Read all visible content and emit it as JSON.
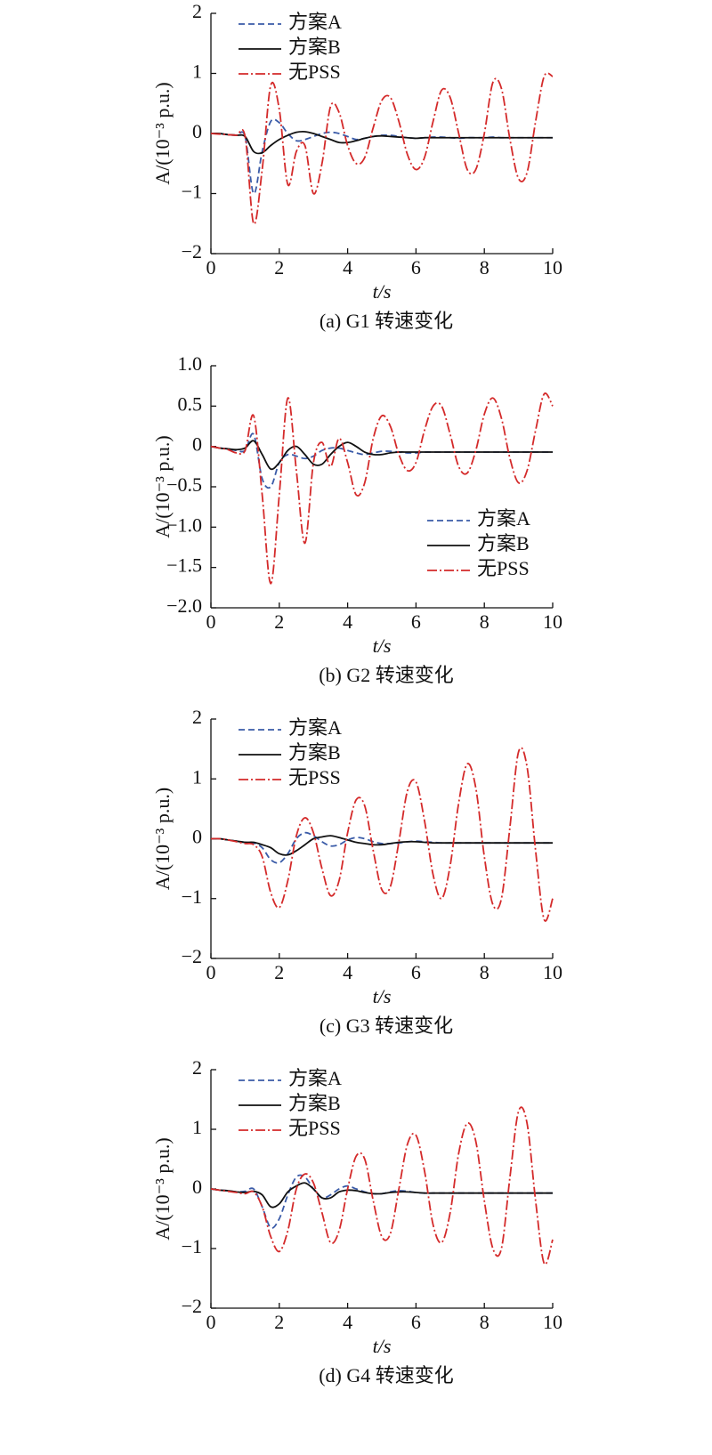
{
  "chart_data": [
    {
      "type": "line",
      "y_label": "A/(10⁻³ p.u.)",
      "x_label": "t/s",
      "caption": "(a) G1 转速变化",
      "legend": "upper left",
      "x": [
        0,
        0.25,
        0.5,
        0.75,
        1,
        1.25,
        1.5,
        1.75,
        2,
        2.25,
        2.5,
        2.75,
        3,
        3.25,
        3.5,
        3.75,
        4,
        4.25,
        4.5,
        4.75,
        5,
        5.25,
        5.5,
        5.75,
        6,
        6.25,
        6.5,
        6.75,
        7,
        7.25,
        7.5,
        7.75,
        8,
        8.25,
        8.5,
        8.75,
        9,
        9.25,
        9.5,
        9.75,
        10
      ],
      "xlim": [
        0,
        10
      ],
      "xticks": [
        0,
        2,
        4,
        6,
        8,
        10
      ],
      "ylim": [
        -2,
        2
      ],
      "yticks": [
        2,
        1,
        0,
        {
          "value": -1,
          "label": "−1"
        },
        {
          "value": -2,
          "label": "−2"
        }
      ],
      "series": [
        {
          "name": "方案A",
          "color": "#3a5ba8",
          "dash": "dashed",
          "values": [
            0,
            0,
            -0.02,
            -0.03,
            -0.05,
            -1.0,
            -0.3,
            0.2,
            0.18,
            0,
            -0.12,
            -0.1,
            -0.05,
            0,
            0.02,
            0,
            -0.05,
            -0.1,
            -0.08,
            -0.05,
            -0.03,
            -0.03,
            -0.05,
            -0.07,
            -0.08,
            -0.07,
            -0.06,
            -0.06,
            -0.07,
            -0.08,
            -0.07,
            -0.07,
            -0.07,
            -0.06,
            -0.07,
            -0.07,
            -0.07,
            -0.07,
            -0.07,
            -0.07,
            -0.07
          ]
        },
        {
          "name": "方案B",
          "color": "#111111",
          "dash": "solid",
          "values": [
            0,
            0,
            -0.02,
            -0.03,
            -0.05,
            -0.3,
            -0.32,
            -0.2,
            -0.1,
            -0.03,
            0.02,
            0.03,
            0,
            -0.05,
            -0.1,
            -0.15,
            -0.15,
            -0.12,
            -0.08,
            -0.05,
            -0.04,
            -0.05,
            -0.06,
            -0.07,
            -0.08,
            -0.07,
            -0.07,
            -0.07,
            -0.07,
            -0.07,
            -0.07,
            -0.07,
            -0.07,
            -0.07,
            -0.07,
            -0.07,
            -0.07,
            -0.07,
            -0.07,
            -0.07,
            -0.07
          ]
        },
        {
          "name": "无PSS",
          "color": "#d42a2a",
          "dash": "dashdot",
          "values": [
            0,
            -0.01,
            -0.02,
            -0.03,
            -0.05,
            -1.5,
            -0.6,
            0.8,
            0.4,
            -0.85,
            -0.3,
            -0.2,
            -1.0,
            -0.5,
            0.45,
            0.35,
            -0.2,
            -0.5,
            -0.4,
            0.1,
            0.55,
            0.6,
            0.2,
            -0.35,
            -0.6,
            -0.4,
            0.2,
            0.72,
            0.6,
            0,
            -0.6,
            -0.6,
            0,
            0.85,
            0.75,
            -0.1,
            -0.75,
            -0.65,
            0.2,
            0.95,
            0.95
          ]
        }
      ]
    },
    {
      "type": "line",
      "y_label": "A/(10⁻³ p.u.)",
      "x_label": "t/s",
      "caption": "(b) G2 转速变化",
      "legend": "lower right",
      "x": [
        0,
        0.25,
        0.5,
        0.75,
        1,
        1.25,
        1.5,
        1.75,
        2,
        2.25,
        2.5,
        2.75,
        3,
        3.25,
        3.5,
        3.75,
        4,
        4.25,
        4.5,
        4.75,
        5,
        5.25,
        5.5,
        5.75,
        6,
        6.25,
        6.5,
        6.75,
        7,
        7.25,
        7.5,
        7.75,
        8,
        8.25,
        8.5,
        8.75,
        9,
        9.25,
        9.5,
        9.75,
        10
      ],
      "xlim": [
        0,
        10
      ],
      "xticks": [
        0,
        2,
        4,
        6,
        8,
        10
      ],
      "ylim": [
        -2,
        1
      ],
      "yticks": [
        {
          "value": 1,
          "label": "1.0"
        },
        0.5,
        0,
        {
          "value": -0.5,
          "label": "−0.5"
        },
        {
          "value": -1,
          "label": "−1.0"
        },
        {
          "value": -1.5,
          "label": "−1.5"
        },
        {
          "value": -2,
          "label": "−2.0"
        }
      ],
      "series": [
        {
          "name": "方案A",
          "color": "#3a5ba8",
          "dash": "dashed",
          "values": [
            0,
            -0.02,
            -0.03,
            -0.05,
            -0.05,
            0.15,
            -0.4,
            -0.5,
            -0.2,
            -0.1,
            -0.12,
            -0.15,
            -0.12,
            -0.05,
            -0.02,
            -0.02,
            -0.05,
            -0.08,
            -0.1,
            -0.08,
            -0.06,
            -0.06,
            -0.07,
            -0.08,
            -0.08,
            -0.07,
            -0.07,
            -0.07,
            -0.07,
            -0.07,
            -0.07,
            -0.07,
            -0.07,
            -0.07,
            -0.07,
            -0.07,
            -0.07,
            -0.07,
            -0.07,
            -0.07,
            -0.07
          ]
        },
        {
          "name": "方案B",
          "color": "#111111",
          "dash": "solid",
          "values": [
            0,
            -0.02,
            -0.03,
            -0.04,
            -0.02,
            0.07,
            -0.1,
            -0.28,
            -0.2,
            -0.05,
            0,
            -0.1,
            -0.22,
            -0.22,
            -0.1,
            0,
            0.05,
            0,
            -0.07,
            -0.1,
            -0.1,
            -0.08,
            -0.07,
            -0.07,
            -0.07,
            -0.07,
            -0.07,
            -0.07,
            -0.07,
            -0.07,
            -0.07,
            -0.07,
            -0.07,
            -0.07,
            -0.07,
            -0.07,
            -0.07,
            -0.07,
            -0.07,
            -0.07,
            -0.07
          ]
        },
        {
          "name": "无PSS",
          "color": "#d42a2a",
          "dash": "dashdot",
          "values": [
            0,
            -0.02,
            -0.04,
            -0.08,
            -0.05,
            0.38,
            -0.6,
            -1.7,
            -0.6,
            0.6,
            -0.3,
            -1.2,
            -0.2,
            0.05,
            -0.25,
            0.1,
            -0.2,
            -0.6,
            -0.45,
            0.1,
            0.38,
            0.25,
            -0.1,
            -0.3,
            -0.2,
            0.2,
            0.5,
            0.5,
            0.15,
            -0.25,
            -0.33,
            -0.05,
            0.4,
            0.6,
            0.35,
            -0.15,
            -0.45,
            -0.3,
            0.2,
            0.65,
            0.5
          ]
        }
      ]
    },
    {
      "type": "line",
      "y_label": "A/(10⁻³ p.u.)",
      "x_label": "t/s",
      "caption": "(c) G3 转速变化",
      "legend": "upper left",
      "x": [
        0,
        0.25,
        0.5,
        0.75,
        1,
        1.25,
        1.5,
        1.75,
        2,
        2.25,
        2.5,
        2.75,
        3,
        3.25,
        3.5,
        3.75,
        4,
        4.25,
        4.5,
        4.75,
        5,
        5.25,
        5.5,
        5.75,
        6,
        6.25,
        6.5,
        6.75,
        7,
        7.25,
        7.5,
        7.75,
        8,
        8.25,
        8.5,
        8.75,
        9,
        9.25,
        9.5,
        9.75,
        10
      ],
      "xlim": [
        0,
        10
      ],
      "xticks": [
        0,
        2,
        4,
        6,
        8,
        10
      ],
      "ylim": [
        -2,
        2
      ],
      "yticks": [
        2,
        1,
        0,
        {
          "value": -1,
          "label": "−1"
        },
        {
          "value": -2,
          "label": "−2"
        }
      ],
      "series": [
        {
          "name": "方案A",
          "color": "#3a5ba8",
          "dash": "dashed",
          "values": [
            0,
            0,
            -0.02,
            -0.04,
            -0.06,
            -0.07,
            -0.15,
            -0.35,
            -0.4,
            -0.25,
            0,
            0.1,
            0.05,
            -0.05,
            -0.12,
            -0.1,
            -0.02,
            0.02,
            0,
            -0.05,
            -0.08,
            -0.08,
            -0.07,
            -0.05,
            -0.04,
            -0.05,
            -0.06,
            -0.07,
            -0.07,
            -0.07,
            -0.07,
            -0.07,
            -0.07,
            -0.07,
            -0.07,
            -0.07,
            -0.07,
            -0.07,
            -0.07,
            -0.07,
            -0.07
          ]
        },
        {
          "name": "方案B",
          "color": "#111111",
          "dash": "solid",
          "values": [
            0,
            0,
            -0.02,
            -0.04,
            -0.06,
            -0.06,
            -0.1,
            -0.15,
            -0.25,
            -0.27,
            -0.2,
            -0.1,
            0,
            0.03,
            0.05,
            0.02,
            -0.02,
            -0.06,
            -0.08,
            -0.1,
            -0.1,
            -0.08,
            -0.06,
            -0.05,
            -0.05,
            -0.06,
            -0.07,
            -0.07,
            -0.07,
            -0.07,
            -0.07,
            -0.07,
            -0.07,
            -0.07,
            -0.07,
            -0.07,
            -0.07,
            -0.07,
            -0.07,
            -0.07,
            -0.07
          ]
        },
        {
          "name": "无PSS",
          "color": "#d42a2a",
          "dash": "dashdot",
          "values": [
            0,
            0,
            -0.02,
            -0.05,
            -0.08,
            -0.1,
            -0.3,
            -0.9,
            -1.15,
            -0.7,
            0.05,
            0.35,
            0.1,
            -0.5,
            -0.95,
            -0.7,
            0.1,
            0.65,
            0.55,
            -0.2,
            -0.85,
            -0.8,
            -0.05,
            0.8,
            0.95,
            0.3,
            -0.6,
            -1.0,
            -0.45,
            0.6,
            1.25,
            0.85,
            -0.3,
            -1.1,
            -1.0,
            0.2,
            1.45,
            1.2,
            -0.2,
            -1.35,
            -1.0
          ]
        }
      ]
    },
    {
      "type": "line",
      "y_label": "A/(10⁻³ p.u.)",
      "x_label": "t/s",
      "caption": "(d) G4 转速变化",
      "legend": "upper left",
      "x": [
        0,
        0.25,
        0.5,
        0.75,
        1,
        1.25,
        1.5,
        1.75,
        2,
        2.25,
        2.5,
        2.75,
        3,
        3.25,
        3.5,
        3.75,
        4,
        4.25,
        4.5,
        4.75,
        5,
        5.25,
        5.5,
        5.75,
        6,
        6.25,
        6.5,
        6.75,
        7,
        7.25,
        7.5,
        7.75,
        8,
        8.25,
        8.5,
        8.75,
        9,
        9.25,
        9.5,
        9.75,
        10
      ],
      "xlim": [
        0,
        10
      ],
      "xticks": [
        0,
        2,
        4,
        6,
        8,
        10
      ],
      "ylim": [
        -2,
        2
      ],
      "yticks": [
        2,
        1,
        0,
        {
          "value": -1,
          "label": "−1"
        },
        {
          "value": -2,
          "label": "−2"
        }
      ],
      "series": [
        {
          "name": "方案A",
          "color": "#3a5ba8",
          "dash": "dashed",
          "values": [
            0,
            -0.02,
            -0.03,
            -0.05,
            -0.04,
            0,
            -0.3,
            -0.65,
            -0.5,
            -0.1,
            0.2,
            0.2,
            0,
            -0.15,
            -0.1,
            0,
            0.05,
            0,
            -0.05,
            -0.08,
            -0.08,
            -0.05,
            -0.03,
            -0.04,
            -0.06,
            -0.07,
            -0.07,
            -0.07,
            -0.07,
            -0.07,
            -0.07,
            -0.07,
            -0.07,
            -0.07,
            -0.07,
            -0.07,
            -0.07,
            -0.07,
            -0.07,
            -0.07,
            -0.07
          ]
        },
        {
          "name": "方案B",
          "color": "#111111",
          "dash": "solid",
          "values": [
            0,
            -0.02,
            -0.03,
            -0.05,
            -0.06,
            -0.04,
            -0.1,
            -0.3,
            -0.25,
            -0.05,
            0.05,
            0.1,
            0,
            -0.15,
            -0.15,
            -0.05,
            -0.02,
            -0.03,
            -0.06,
            -0.08,
            -0.08,
            -0.06,
            -0.05,
            -0.05,
            -0.06,
            -0.07,
            -0.07,
            -0.07,
            -0.07,
            -0.07,
            -0.07,
            -0.07,
            -0.07,
            -0.07,
            -0.07,
            -0.07,
            -0.07,
            -0.07,
            -0.07,
            -0.07,
            -0.07
          ]
        },
        {
          "name": "无PSS",
          "color": "#d42a2a",
          "dash": "dashdot",
          "values": [
            0,
            -0.02,
            -0.04,
            -0.06,
            -0.08,
            -0.05,
            -0.3,
            -0.8,
            -1.05,
            -0.7,
            0,
            0.25,
            0.1,
            -0.4,
            -0.9,
            -0.7,
            0,
            0.55,
            0.5,
            -0.2,
            -0.8,
            -0.75,
            0,
            0.75,
            0.9,
            0.3,
            -0.6,
            -0.9,
            -0.4,
            0.6,
            1.1,
            0.8,
            -0.2,
            -1.0,
            -1.0,
            0.2,
            1.3,
            1.1,
            -0.2,
            -1.25,
            -0.85
          ]
        }
      ]
    }
  ]
}
